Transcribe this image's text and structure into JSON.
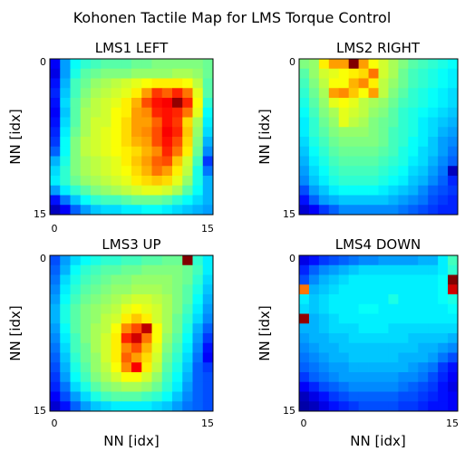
{
  "title": "Kohonen Tactile Map for LMS Torque Control",
  "colormap": "jet",
  "chart_data": [
    {
      "type": "heatmap",
      "title": "LMS1 LEFT",
      "xlabel": "",
      "ylabel": "NN [idx]",
      "x_ticks": [
        "0",
        "15"
      ],
      "y_ticks": [
        "0",
        "15"
      ],
      "xlim": [
        0,
        15
      ],
      "ylim": [
        0,
        15
      ],
      "values": [
        [
          0.12,
          0.28,
          0.38,
          0.42,
          0.44,
          0.46,
          0.46,
          0.46,
          0.48,
          0.48,
          0.5,
          0.5,
          0.5,
          0.5,
          0.5,
          0.48
        ],
        [
          0.1,
          0.28,
          0.4,
          0.46,
          0.48,
          0.5,
          0.5,
          0.5,
          0.52,
          0.52,
          0.52,
          0.52,
          0.54,
          0.54,
          0.52,
          0.48
        ],
        [
          0.14,
          0.3,
          0.44,
          0.48,
          0.52,
          0.54,
          0.56,
          0.58,
          0.6,
          0.62,
          0.64,
          0.64,
          0.64,
          0.62,
          0.56,
          0.46
        ],
        [
          0.16,
          0.32,
          0.44,
          0.5,
          0.54,
          0.56,
          0.58,
          0.6,
          0.64,
          0.72,
          0.82,
          0.78,
          0.84,
          0.76,
          0.6,
          0.46
        ],
        [
          0.14,
          0.34,
          0.46,
          0.52,
          0.56,
          0.58,
          0.6,
          0.64,
          0.7,
          0.8,
          0.86,
          0.88,
          0.98,
          0.84,
          0.62,
          0.42
        ],
        [
          0.12,
          0.32,
          0.46,
          0.54,
          0.56,
          0.58,
          0.62,
          0.64,
          0.72,
          0.74,
          0.84,
          0.86,
          0.84,
          0.76,
          0.6,
          0.38
        ],
        [
          0.14,
          0.34,
          0.46,
          0.54,
          0.58,
          0.58,
          0.62,
          0.66,
          0.72,
          0.72,
          0.78,
          0.86,
          0.82,
          0.66,
          0.54,
          0.36
        ],
        [
          0.16,
          0.36,
          0.48,
          0.54,
          0.58,
          0.6,
          0.62,
          0.66,
          0.72,
          0.74,
          0.8,
          0.88,
          0.84,
          0.68,
          0.52,
          0.34
        ],
        [
          0.18,
          0.38,
          0.5,
          0.56,
          0.58,
          0.6,
          0.62,
          0.66,
          0.7,
          0.72,
          0.8,
          0.86,
          0.8,
          0.66,
          0.5,
          0.3
        ],
        [
          0.22,
          0.38,
          0.5,
          0.56,
          0.58,
          0.6,
          0.62,
          0.64,
          0.66,
          0.7,
          0.74,
          0.84,
          0.76,
          0.64,
          0.48,
          0.26
        ],
        [
          0.3,
          0.4,
          0.5,
          0.54,
          0.56,
          0.58,
          0.6,
          0.64,
          0.68,
          0.72,
          0.78,
          0.8,
          0.68,
          0.58,
          0.44,
          0.18
        ],
        [
          0.34,
          0.42,
          0.5,
          0.54,
          0.56,
          0.58,
          0.6,
          0.62,
          0.66,
          0.7,
          0.76,
          0.72,
          0.64,
          0.56,
          0.4,
          0.24
        ],
        [
          0.36,
          0.42,
          0.48,
          0.52,
          0.54,
          0.56,
          0.58,
          0.6,
          0.64,
          0.66,
          0.68,
          0.66,
          0.6,
          0.52,
          0.4,
          0.3
        ],
        [
          0.28,
          0.36,
          0.42,
          0.46,
          0.5,
          0.52,
          0.54,
          0.56,
          0.58,
          0.6,
          0.6,
          0.58,
          0.54,
          0.46,
          0.38,
          0.3
        ],
        [
          0.14,
          0.24,
          0.32,
          0.38,
          0.42,
          0.44,
          0.44,
          0.46,
          0.48,
          0.48,
          0.48,
          0.46,
          0.42,
          0.38,
          0.34,
          0.3
        ],
        [
          0.06,
          0.12,
          0.22,
          0.28,
          0.32,
          0.34,
          0.34,
          0.36,
          0.36,
          0.38,
          0.38,
          0.36,
          0.34,
          0.32,
          0.3,
          0.28
        ]
      ]
    },
    {
      "type": "heatmap",
      "title": "LMS2 RIGHT",
      "xlabel": "",
      "ylabel": "NN [idx]",
      "x_ticks": [
        "0",
        "15"
      ],
      "y_ticks": [
        "0",
        "15"
      ],
      "xlim": [
        0,
        15
      ],
      "ylim": [
        0,
        15
      ],
      "values": [
        [
          0.5,
          0.52,
          0.64,
          0.72,
          0.72,
          1.0,
          0.72,
          0.62,
          0.58,
          0.54,
          0.5,
          0.46,
          0.44,
          0.42,
          0.4,
          0.38
        ],
        [
          0.46,
          0.52,
          0.58,
          0.6,
          0.62,
          0.64,
          0.66,
          0.76,
          0.58,
          0.54,
          0.48,
          0.44,
          0.42,
          0.4,
          0.38,
          0.36
        ],
        [
          0.44,
          0.5,
          0.56,
          0.62,
          0.62,
          0.7,
          0.74,
          0.64,
          0.56,
          0.52,
          0.48,
          0.44,
          0.42,
          0.4,
          0.38,
          0.36
        ],
        [
          0.42,
          0.48,
          0.54,
          0.72,
          0.74,
          0.68,
          0.62,
          0.72,
          0.56,
          0.5,
          0.46,
          0.42,
          0.4,
          0.38,
          0.36,
          0.34
        ],
        [
          0.4,
          0.46,
          0.52,
          0.6,
          0.62,
          0.6,
          0.56,
          0.54,
          0.52,
          0.48,
          0.44,
          0.42,
          0.4,
          0.38,
          0.36,
          0.34
        ],
        [
          0.38,
          0.44,
          0.5,
          0.54,
          0.6,
          0.58,
          0.56,
          0.52,
          0.5,
          0.46,
          0.42,
          0.4,
          0.38,
          0.36,
          0.34,
          0.32
        ],
        [
          0.36,
          0.42,
          0.48,
          0.52,
          0.6,
          0.56,
          0.54,
          0.5,
          0.48,
          0.46,
          0.42,
          0.4,
          0.36,
          0.34,
          0.32,
          0.3
        ],
        [
          0.36,
          0.42,
          0.46,
          0.5,
          0.52,
          0.52,
          0.52,
          0.5,
          0.48,
          0.44,
          0.42,
          0.4,
          0.36,
          0.34,
          0.3,
          0.28
        ],
        [
          0.34,
          0.4,
          0.44,
          0.48,
          0.5,
          0.5,
          0.5,
          0.5,
          0.48,
          0.44,
          0.42,
          0.38,
          0.36,
          0.32,
          0.28,
          0.26
        ],
        [
          0.32,
          0.38,
          0.42,
          0.46,
          0.48,
          0.48,
          0.48,
          0.48,
          0.46,
          0.44,
          0.4,
          0.38,
          0.34,
          0.32,
          0.28,
          0.24
        ],
        [
          0.3,
          0.36,
          0.4,
          0.44,
          0.46,
          0.46,
          0.46,
          0.46,
          0.44,
          0.42,
          0.4,
          0.36,
          0.34,
          0.3,
          0.26,
          0.22
        ],
        [
          0.28,
          0.34,
          0.38,
          0.42,
          0.44,
          0.44,
          0.44,
          0.44,
          0.42,
          0.4,
          0.38,
          0.34,
          0.32,
          0.28,
          0.24,
          0.06
        ],
        [
          0.26,
          0.32,
          0.36,
          0.4,
          0.42,
          0.42,
          0.42,
          0.42,
          0.4,
          0.38,
          0.36,
          0.32,
          0.3,
          0.26,
          0.22,
          0.16
        ],
        [
          0.2,
          0.28,
          0.32,
          0.36,
          0.38,
          0.38,
          0.38,
          0.38,
          0.36,
          0.34,
          0.32,
          0.3,
          0.26,
          0.22,
          0.2,
          0.18
        ],
        [
          0.14,
          0.22,
          0.28,
          0.3,
          0.32,
          0.32,
          0.32,
          0.32,
          0.32,
          0.3,
          0.28,
          0.26,
          0.24,
          0.2,
          0.18,
          0.16
        ],
        [
          0.08,
          0.12,
          0.18,
          0.22,
          0.26,
          0.26,
          0.26,
          0.26,
          0.26,
          0.26,
          0.24,
          0.22,
          0.2,
          0.18,
          0.16,
          0.16
        ]
      ]
    },
    {
      "type": "heatmap",
      "title": "LMS3 UP",
      "xlabel": "NN [idx]",
      "ylabel": "NN [idx]",
      "x_ticks": [
        "0",
        "15"
      ],
      "y_ticks": [
        "0",
        "15"
      ],
      "xlim": [
        0,
        15
      ],
      "ylim": [
        0,
        15
      ],
      "values": [
        [
          0.2,
          0.28,
          0.34,
          0.38,
          0.4,
          0.42,
          0.42,
          0.44,
          0.44,
          0.46,
          0.46,
          0.48,
          0.48,
          1.0,
          0.42,
          0.36
        ],
        [
          0.22,
          0.3,
          0.38,
          0.42,
          0.44,
          0.46,
          0.46,
          0.48,
          0.48,
          0.5,
          0.5,
          0.5,
          0.5,
          0.48,
          0.44,
          0.36
        ],
        [
          0.24,
          0.34,
          0.4,
          0.44,
          0.46,
          0.48,
          0.5,
          0.5,
          0.52,
          0.52,
          0.52,
          0.52,
          0.5,
          0.48,
          0.42,
          0.34
        ],
        [
          0.26,
          0.36,
          0.42,
          0.46,
          0.48,
          0.5,
          0.52,
          0.52,
          0.54,
          0.54,
          0.54,
          0.52,
          0.5,
          0.46,
          0.4,
          0.32
        ],
        [
          0.28,
          0.38,
          0.44,
          0.48,
          0.5,
          0.52,
          0.54,
          0.56,
          0.58,
          0.58,
          0.56,
          0.54,
          0.5,
          0.46,
          0.38,
          0.3
        ],
        [
          0.3,
          0.4,
          0.46,
          0.5,
          0.52,
          0.54,
          0.56,
          0.6,
          0.62,
          0.6,
          0.58,
          0.54,
          0.5,
          0.44,
          0.36,
          0.28
        ],
        [
          0.3,
          0.4,
          0.46,
          0.5,
          0.52,
          0.56,
          0.58,
          0.64,
          0.68,
          0.64,
          0.58,
          0.54,
          0.48,
          0.42,
          0.34,
          0.26
        ],
        [
          0.28,
          0.38,
          0.46,
          0.5,
          0.54,
          0.56,
          0.62,
          0.74,
          0.8,
          0.94,
          0.62,
          0.54,
          0.48,
          0.4,
          0.3,
          0.22
        ],
        [
          0.26,
          0.36,
          0.44,
          0.5,
          0.54,
          0.58,
          0.64,
          0.84,
          0.92,
          0.76,
          0.62,
          0.52,
          0.46,
          0.38,
          0.28,
          0.18
        ],
        [
          0.24,
          0.34,
          0.44,
          0.48,
          0.54,
          0.58,
          0.64,
          0.74,
          0.8,
          0.7,
          0.6,
          0.5,
          0.44,
          0.36,
          0.26,
          0.14
        ],
        [
          0.22,
          0.32,
          0.42,
          0.48,
          0.52,
          0.58,
          0.64,
          0.78,
          0.72,
          0.66,
          0.58,
          0.48,
          0.42,
          0.34,
          0.24,
          0.12
        ],
        [
          0.2,
          0.3,
          0.4,
          0.46,
          0.52,
          0.56,
          0.62,
          0.74,
          0.88,
          0.64,
          0.56,
          0.46,
          0.4,
          0.32,
          0.22,
          0.18
        ],
        [
          0.18,
          0.28,
          0.38,
          0.44,
          0.5,
          0.54,
          0.58,
          0.62,
          0.62,
          0.58,
          0.52,
          0.44,
          0.38,
          0.3,
          0.22,
          0.2
        ],
        [
          0.16,
          0.24,
          0.34,
          0.4,
          0.46,
          0.5,
          0.52,
          0.54,
          0.54,
          0.52,
          0.48,
          0.42,
          0.36,
          0.28,
          0.22,
          0.2
        ],
        [
          0.12,
          0.2,
          0.28,
          0.34,
          0.4,
          0.44,
          0.46,
          0.46,
          0.46,
          0.44,
          0.42,
          0.38,
          0.32,
          0.26,
          0.22,
          0.2
        ],
        [
          0.08,
          0.14,
          0.22,
          0.28,
          0.32,
          0.34,
          0.36,
          0.36,
          0.36,
          0.36,
          0.34,
          0.32,
          0.28,
          0.24,
          0.22,
          0.2
        ]
      ]
    },
    {
      "type": "heatmap",
      "title": "LMS4 DOWN",
      "xlabel": "NN [idx]",
      "ylabel": "NN [idx]",
      "x_ticks": [
        "0",
        "15"
      ],
      "y_ticks": [
        "0",
        "15"
      ],
      "xlim": [
        0,
        15
      ],
      "ylim": [
        0,
        15
      ],
      "values": [
        [
          0.1,
          0.14,
          0.18,
          0.2,
          0.22,
          0.24,
          0.26,
          0.26,
          0.28,
          0.28,
          0.28,
          0.28,
          0.3,
          0.3,
          0.36,
          0.44
        ],
        [
          0.16,
          0.22,
          0.26,
          0.28,
          0.3,
          0.32,
          0.34,
          0.34,
          0.34,
          0.34,
          0.34,
          0.34,
          0.34,
          0.34,
          0.36,
          0.42
        ],
        [
          0.2,
          0.26,
          0.3,
          0.32,
          0.34,
          0.36,
          0.36,
          0.36,
          0.36,
          0.36,
          0.36,
          0.36,
          0.36,
          0.36,
          0.38,
          1.0
        ],
        [
          0.76,
          0.3,
          0.32,
          0.34,
          0.36,
          0.36,
          0.36,
          0.36,
          0.36,
          0.36,
          0.36,
          0.36,
          0.36,
          0.36,
          0.38,
          0.92
        ],
        [
          0.36,
          0.32,
          0.34,
          0.36,
          0.36,
          0.36,
          0.36,
          0.36,
          0.36,
          0.4,
          0.36,
          0.36,
          0.36,
          0.36,
          0.38,
          0.4
        ],
        [
          0.34,
          0.32,
          0.34,
          0.36,
          0.36,
          0.36,
          0.38,
          0.38,
          0.36,
          0.36,
          0.36,
          0.36,
          0.36,
          0.36,
          0.36,
          0.38
        ],
        [
          0.98,
          0.3,
          0.32,
          0.34,
          0.36,
          0.36,
          0.36,
          0.36,
          0.36,
          0.36,
          0.36,
          0.36,
          0.36,
          0.36,
          0.36,
          0.36
        ],
        [
          0.3,
          0.3,
          0.32,
          0.34,
          0.34,
          0.34,
          0.36,
          0.36,
          0.36,
          0.34,
          0.34,
          0.34,
          0.34,
          0.34,
          0.34,
          0.34
        ],
        [
          0.28,
          0.3,
          0.3,
          0.32,
          0.32,
          0.34,
          0.34,
          0.34,
          0.34,
          0.34,
          0.34,
          0.32,
          0.32,
          0.32,
          0.32,
          0.3
        ],
        [
          0.26,
          0.28,
          0.3,
          0.3,
          0.32,
          0.32,
          0.32,
          0.32,
          0.32,
          0.32,
          0.32,
          0.32,
          0.3,
          0.3,
          0.28,
          0.26
        ],
        [
          0.24,
          0.26,
          0.28,
          0.3,
          0.3,
          0.32,
          0.32,
          0.32,
          0.32,
          0.32,
          0.3,
          0.3,
          0.3,
          0.28,
          0.24,
          0.2
        ],
        [
          0.22,
          0.24,
          0.26,
          0.28,
          0.28,
          0.3,
          0.3,
          0.3,
          0.3,
          0.3,
          0.3,
          0.28,
          0.26,
          0.24,
          0.18,
          0.14
        ],
        [
          0.18,
          0.22,
          0.24,
          0.26,
          0.28,
          0.28,
          0.28,
          0.28,
          0.28,
          0.28,
          0.26,
          0.26,
          0.24,
          0.2,
          0.16,
          0.12
        ],
        [
          0.12,
          0.16,
          0.2,
          0.22,
          0.24,
          0.26,
          0.26,
          0.26,
          0.26,
          0.26,
          0.24,
          0.22,
          0.2,
          0.18,
          0.14,
          0.1
        ],
        [
          0.06,
          0.1,
          0.14,
          0.18,
          0.2,
          0.22,
          0.22,
          0.22,
          0.22,
          0.22,
          0.2,
          0.2,
          0.18,
          0.16,
          0.14,
          0.12
        ],
        [
          0.04,
          0.06,
          0.1,
          0.14,
          0.16,
          0.18,
          0.2,
          0.2,
          0.2,
          0.2,
          0.18,
          0.18,
          0.16,
          0.14,
          0.14,
          0.12
        ]
      ]
    }
  ]
}
